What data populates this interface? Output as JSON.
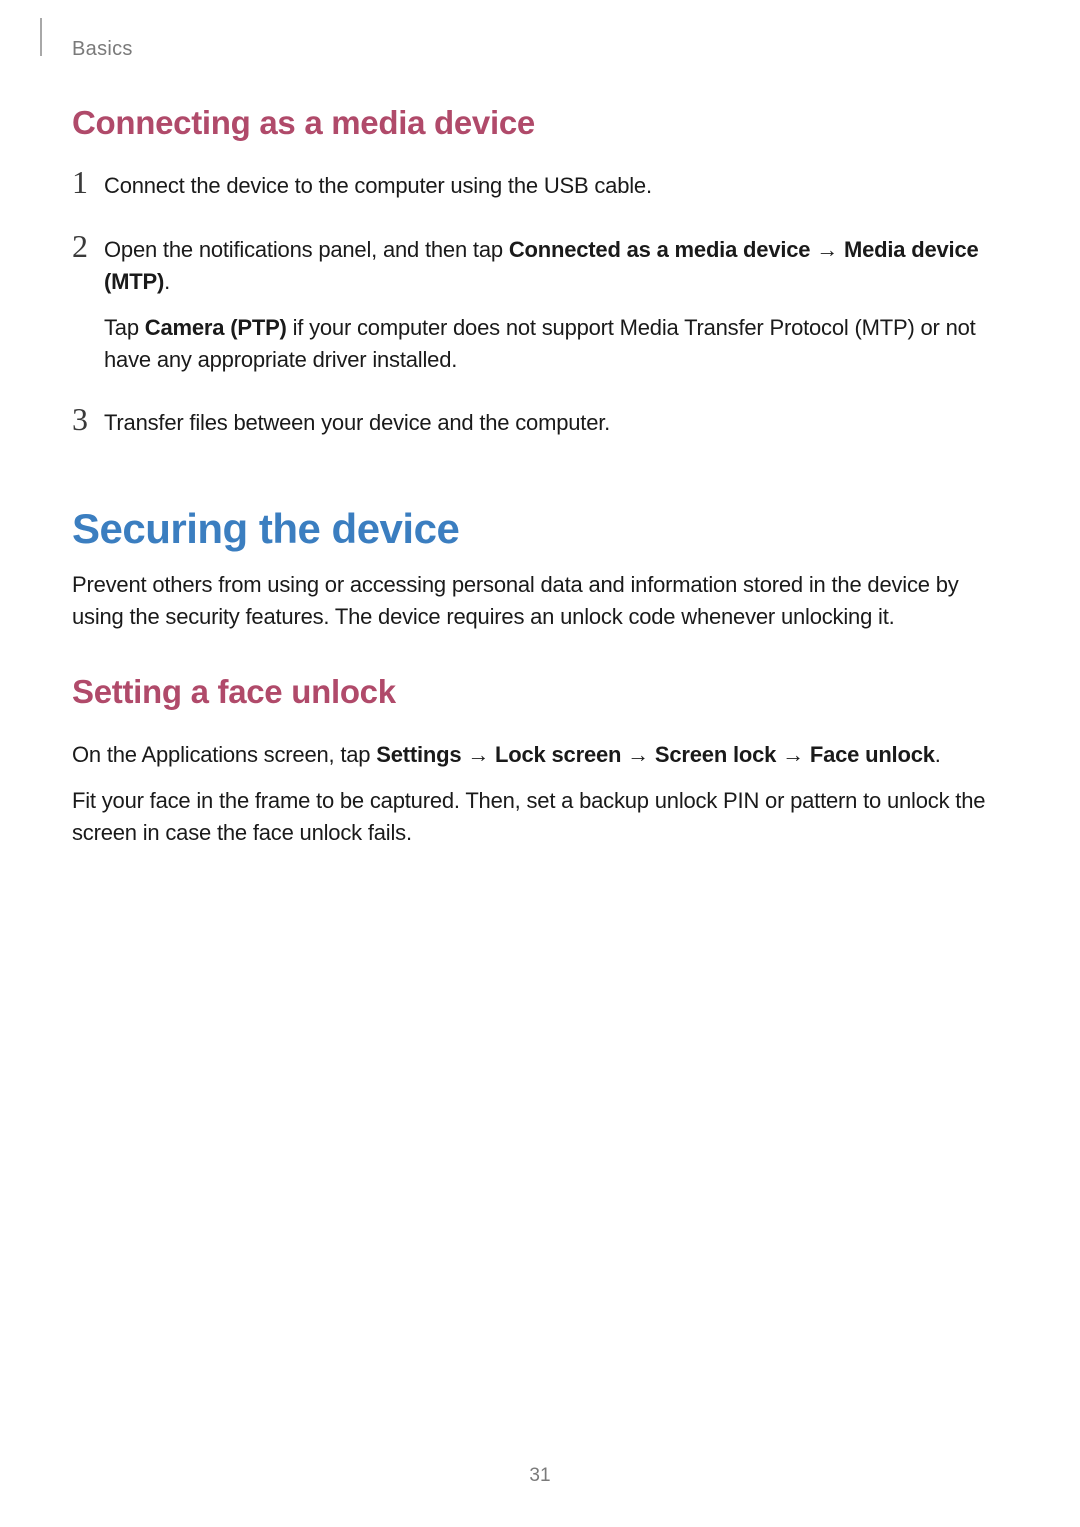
{
  "header": {
    "section_label": "Basics"
  },
  "section1": {
    "heading": "Connecting as a media device",
    "steps": [
      {
        "num": "1",
        "paragraphs": [
          {
            "runs": [
              {
                "text": "Connect the device to the computer using the USB cable."
              }
            ]
          }
        ]
      },
      {
        "num": "2",
        "paragraphs": [
          {
            "runs": [
              {
                "text": "Open the notifications panel, and then tap "
              },
              {
                "text": "Connected as a media device",
                "bold": true
              },
              {
                "text": " → ",
                "arrow": true
              },
              {
                "text": "Media device (MTP)",
                "bold": true
              },
              {
                "text": "."
              }
            ]
          },
          {
            "runs": [
              {
                "text": "Tap "
              },
              {
                "text": "Camera (PTP)",
                "bold": true
              },
              {
                "text": " if your computer does not support Media Transfer Protocol (MTP) or not have any appropriate driver installed."
              }
            ]
          }
        ]
      },
      {
        "num": "3",
        "paragraphs": [
          {
            "runs": [
              {
                "text": "Transfer files between your device and the computer."
              }
            ]
          }
        ]
      }
    ]
  },
  "section2": {
    "heading": "Securing the device",
    "intro": "Prevent others from using or accessing personal data and information stored in the device by using the security features. The device requires an unlock code whenever unlocking it.",
    "sub": {
      "heading": "Setting a face unlock",
      "paragraphs": [
        {
          "runs": [
            {
              "text": "On the Applications screen, tap "
            },
            {
              "text": "Settings",
              "bold": true
            },
            {
              "text": " → ",
              "arrow": true
            },
            {
              "text": "Lock screen",
              "bold": true
            },
            {
              "text": " → ",
              "arrow": true
            },
            {
              "text": "Screen lock",
              "bold": true
            },
            {
              "text": " → ",
              "arrow": true
            },
            {
              "text": "Face unlock",
              "bold": true
            },
            {
              "text": "."
            }
          ]
        },
        {
          "runs": [
            {
              "text": "Fit your face in the frame to be captured. Then, set a backup unlock PIN or pattern to unlock the screen in case the face unlock fails."
            }
          ]
        }
      ]
    }
  },
  "page_number": "31",
  "colors": {
    "heading_blue": "#3b7ec0",
    "heading_mauve": "#b04a6a",
    "body_text": "#1a1a1a",
    "muted_text": "#7a7a7a",
    "divider": "#a8a8a8",
    "background": "#ffffff"
  },
  "typography": {
    "h1_fontsize": 42,
    "h2_fontsize": 33,
    "body_fontsize": 22,
    "stepnum_fontsize": 32,
    "header_label_fontsize": 20,
    "pagenum_fontsize": 19
  }
}
